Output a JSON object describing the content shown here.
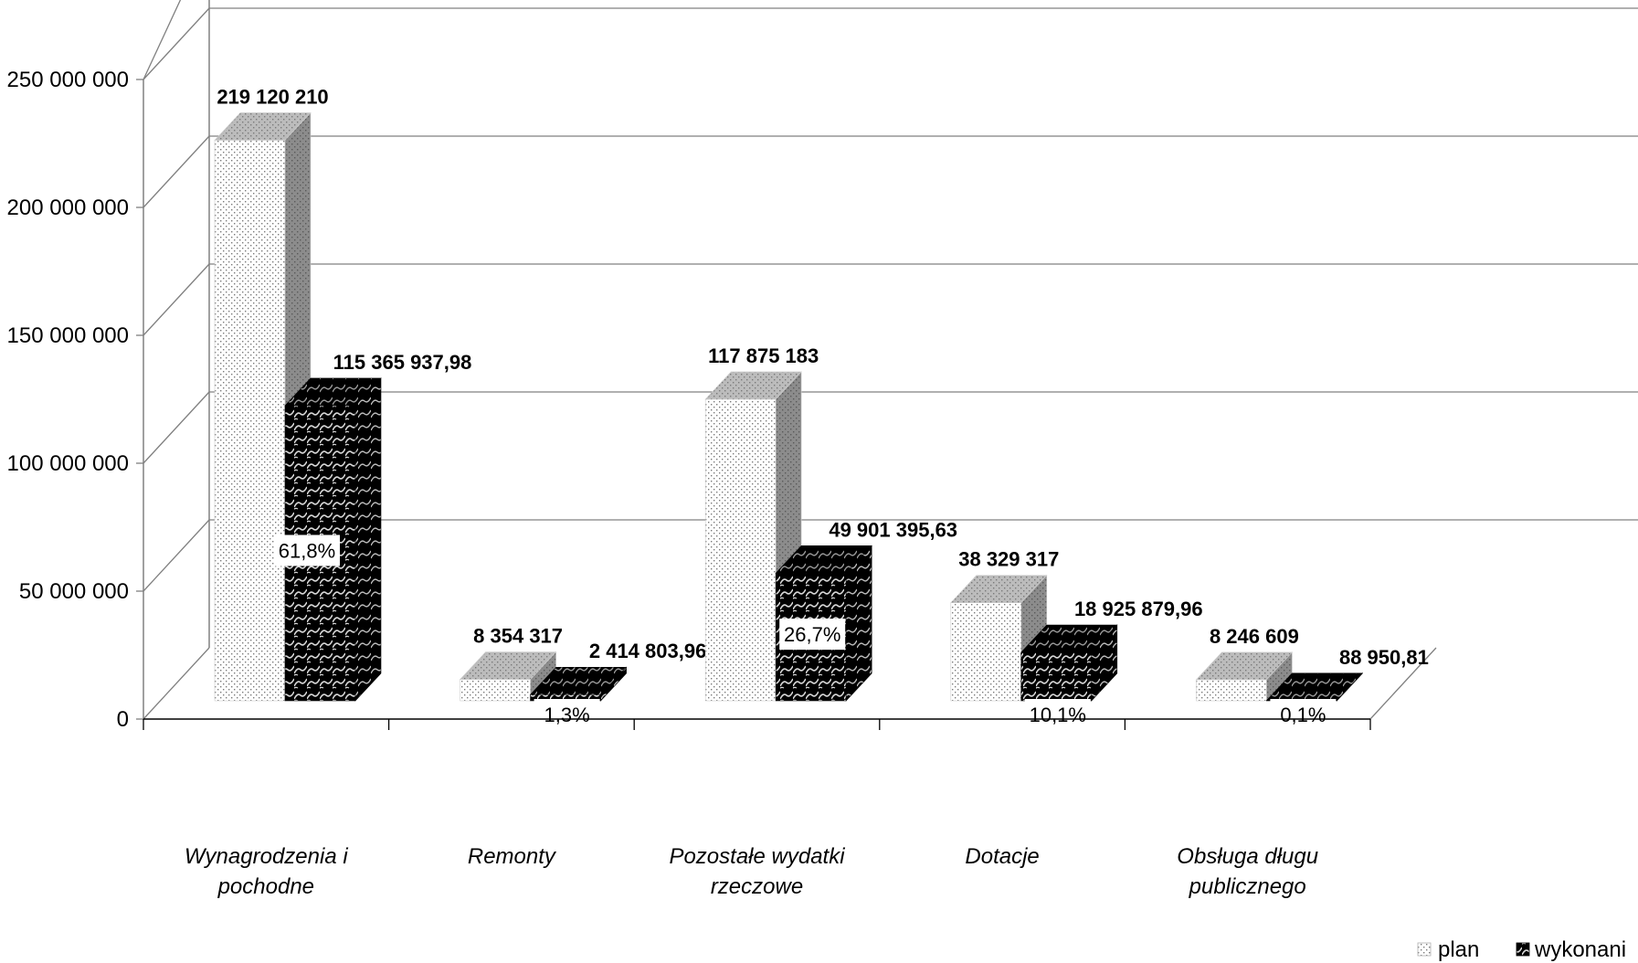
{
  "chart_data": {
    "type": "bar",
    "title": "",
    "xlabel": "",
    "ylabel": "",
    "ylim": [
      0,
      250000000
    ],
    "y_ticks": [
      "0",
      "50 000 000",
      "100 000 000",
      "150 000 000",
      "200 000 000",
      "250 000 000"
    ],
    "y_tick_values": [
      0,
      50000000,
      100000000,
      150000000,
      200000000,
      250000000
    ],
    "grid": true,
    "legend_position": "bottom-right",
    "categories": [
      [
        "Wynagrodzenia i",
        "pochodne"
      ],
      [
        "Remonty"
      ],
      [
        "Pozostałe wydatki",
        "rzeczowe"
      ],
      [
        "Dotacje"
      ],
      [
        "Obsługa długu",
        "publicznego"
      ]
    ],
    "series": [
      {
        "name": "plan",
        "pattern": "dots",
        "values": [
          219120210,
          8354317,
          117875183,
          38329317,
          8246609
        ],
        "labels": [
          "219 120 210",
          "8 354 317",
          "117 875 183",
          "38 329 317",
          "8 246 609"
        ]
      },
      {
        "name": "wykonani",
        "pattern": "weave",
        "values": [
          115365937.98,
          2414803.96,
          49901395.63,
          18925879.96,
          88950.81
        ],
        "labels": [
          "115 365 937,98",
          "2 414 803,96",
          "49 901 395,63",
          "18 925 879,96",
          "88 950,81"
        ]
      }
    ],
    "percent_labels": [
      "61,8%",
      "1,3%",
      "26,7%",
      "10,1%",
      "0,1%"
    ],
    "colors": {
      "plan_front": "#ffffff",
      "plan_top": "#b4b4b4",
      "plan_side": "#8c8c8c",
      "wyk_front": "#000000",
      "wyk_side": "#000000",
      "grid": "#808080",
      "axis": "#808080"
    }
  }
}
